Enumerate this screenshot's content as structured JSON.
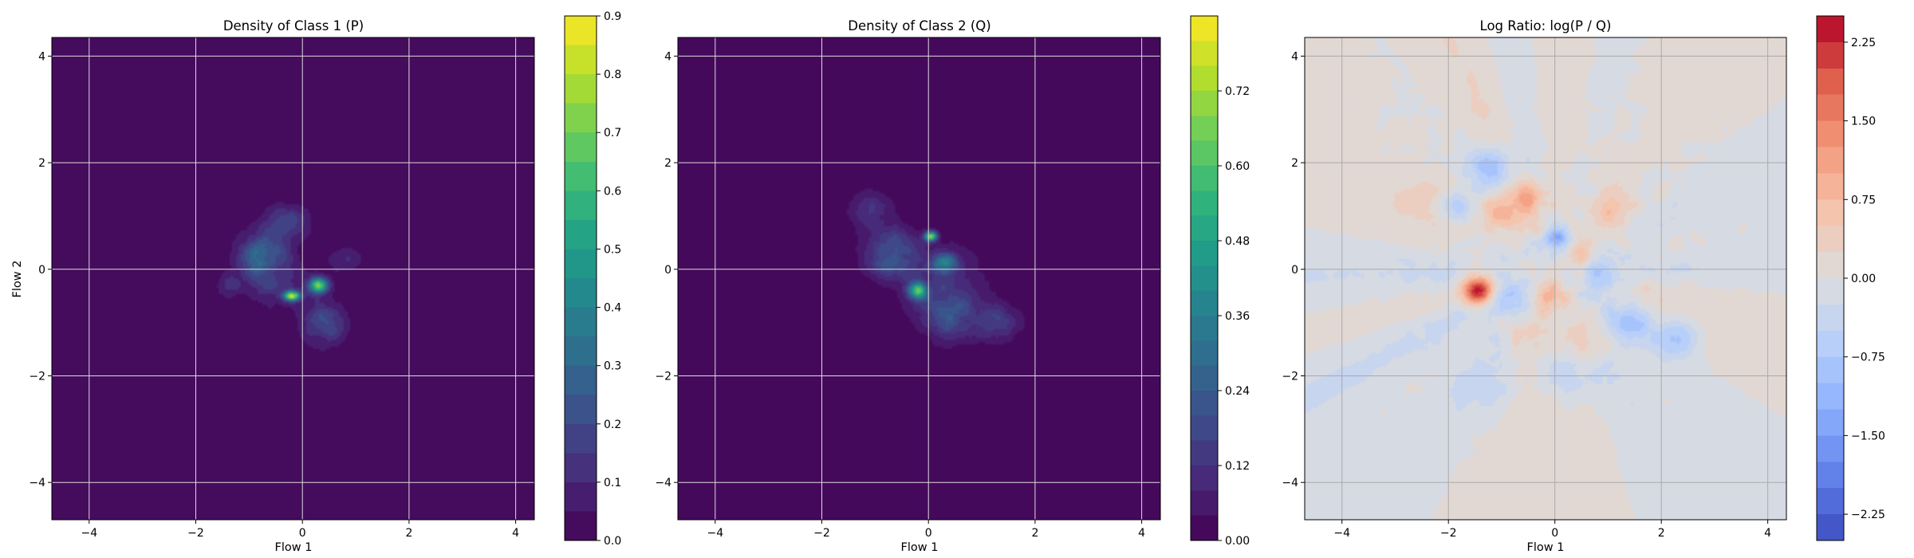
{
  "chart_data": [
    {
      "type": "heatmap",
      "title": "Density of Class 1 (P)",
      "xlabel": "Flow 1",
      "ylabel": "Flow 2",
      "xlim": [
        -4.7,
        4.35
      ],
      "ylim": [
        -4.7,
        4.35
      ],
      "xticks": [
        -4,
        -2,
        0,
        2,
        4
      ],
      "yticks": [
        -4,
        -2,
        0,
        2,
        4
      ],
      "grid": true,
      "colormap": "viridis",
      "background_color": "#440154",
      "colorbar": {
        "range": [
          0,
          0.9
        ],
        "ticks": [
          0.0,
          0.1,
          0.2,
          0.3,
          0.4,
          0.5,
          0.6,
          0.7,
          0.8,
          0.9
        ],
        "levels": 18
      },
      "density_blobs": [
        {
          "cx": -0.2,
          "cy": -0.5,
          "sx": 0.1,
          "sy": 0.06,
          "peak": 0.85
        },
        {
          "cx": 0.3,
          "cy": -0.3,
          "sx": 0.12,
          "sy": 0.1,
          "peak": 0.5
        },
        {
          "cx": -0.8,
          "cy": 0.3,
          "sx": 0.3,
          "sy": 0.3,
          "peak": 0.25
        },
        {
          "cx": 0.4,
          "cy": -1.0,
          "sx": 0.3,
          "sy": 0.3,
          "peak": 0.2
        },
        {
          "cx": -0.3,
          "cy": 0.9,
          "sx": 0.3,
          "sy": 0.25,
          "peak": 0.16
        },
        {
          "cx": -0.5,
          "cy": -0.2,
          "sx": 0.45,
          "sy": 0.4,
          "peak": 0.12
        },
        {
          "cx": -1.4,
          "cy": -0.3,
          "sx": 0.15,
          "sy": 0.15,
          "peak": 0.1
        },
        {
          "cx": 0.8,
          "cy": 0.2,
          "sx": 0.25,
          "sy": 0.2,
          "peak": 0.1
        }
      ]
    },
    {
      "type": "heatmap",
      "title": "Density of Class 2 (Q)",
      "xlabel": "Flow 1",
      "ylabel": "",
      "xlim": [
        -4.7,
        4.35
      ],
      "ylim": [
        -4.7,
        4.35
      ],
      "xticks": [
        -4,
        -2,
        0,
        2,
        4
      ],
      "yticks": [
        -4,
        -2,
        0,
        2,
        4
      ],
      "grid": true,
      "colormap": "viridis",
      "background_color": "#440154",
      "colorbar": {
        "range": [
          0,
          0.84
        ],
        "ticks": [
          0.0,
          0.12,
          0.24,
          0.36,
          0.48,
          0.6,
          0.72
        ],
        "levels": 21
      },
      "density_blobs": [
        {
          "cx": 0.05,
          "cy": 0.62,
          "sx": 0.08,
          "sy": 0.06,
          "peak": 0.6
        },
        {
          "cx": -0.2,
          "cy": -0.4,
          "sx": 0.12,
          "sy": 0.1,
          "peak": 0.45
        },
        {
          "cx": 0.3,
          "cy": 0.1,
          "sx": 0.15,
          "sy": 0.12,
          "peak": 0.35
        },
        {
          "cx": -0.7,
          "cy": 0.3,
          "sx": 0.35,
          "sy": 0.3,
          "peak": 0.22
        },
        {
          "cx": 0.4,
          "cy": -0.9,
          "sx": 0.35,
          "sy": 0.3,
          "peak": 0.2
        },
        {
          "cx": 1.3,
          "cy": -1.0,
          "sx": 0.3,
          "sy": 0.25,
          "peak": 0.14
        },
        {
          "cx": -1.1,
          "cy": 1.1,
          "sx": 0.3,
          "sy": 0.25,
          "peak": 0.12
        },
        {
          "cx": 0.2,
          "cy": -0.2,
          "sx": 0.6,
          "sy": 0.5,
          "peak": 0.1
        }
      ]
    },
    {
      "type": "heatmap",
      "title": "Log Ratio: log(P / Q)",
      "xlabel": "Flow 1",
      "ylabel": "",
      "xlim": [
        -4.7,
        4.35
      ],
      "ylim": [
        -4.7,
        4.35
      ],
      "xticks": [
        -4,
        -2,
        0,
        2,
        4
      ],
      "yticks": [
        -4,
        -2,
        0,
        2,
        4
      ],
      "grid": true,
      "colormap": "coolwarm",
      "colorbar": {
        "range": [
          -2.5,
          2.5
        ],
        "ticks": [
          -2.25,
          -1.5,
          -0.75,
          0.0,
          0.75,
          1.5,
          2.25
        ],
        "levels": 20
      },
      "ratio_blobs": [
        {
          "cx": -1.45,
          "cy": -0.4,
          "sx": 0.2,
          "sy": 0.18,
          "value": 2.3
        },
        {
          "cx": -1.0,
          "cy": 1.1,
          "sx": 0.25,
          "sy": 0.25,
          "value": 0.9
        },
        {
          "cx": -0.5,
          "cy": 1.4,
          "sx": 0.2,
          "sy": 0.2,
          "value": 1.0
        },
        {
          "cx": -0.1,
          "cy": -0.5,
          "sx": 0.2,
          "sy": 0.2,
          "value": 0.9
        },
        {
          "cx": 0.5,
          "cy": 0.3,
          "sx": 0.2,
          "sy": 0.2,
          "value": 0.8
        },
        {
          "cx": 1.1,
          "cy": 1.1,
          "sx": 0.3,
          "sy": 0.3,
          "value": 0.6
        },
        {
          "cx": -0.5,
          "cy": -1.1,
          "sx": 0.3,
          "sy": 0.25,
          "value": 0.5
        },
        {
          "cx": -2.4,
          "cy": 1.3,
          "sx": 0.5,
          "sy": 0.3,
          "value": 0.45
        },
        {
          "cx": 0.6,
          "cy": -1.3,
          "sx": 0.3,
          "sy": 0.3,
          "value": 0.5
        },
        {
          "cx": 0.05,
          "cy": 0.6,
          "sx": 0.15,
          "sy": 0.15,
          "value": -1.4
        },
        {
          "cx": -1.2,
          "cy": 1.9,
          "sx": 0.3,
          "sy": 0.3,
          "value": -1.0
        },
        {
          "cx": -1.9,
          "cy": 1.2,
          "sx": 0.25,
          "sy": 0.2,
          "value": -0.9
        },
        {
          "cx": 1.4,
          "cy": -1.0,
          "sx": 0.3,
          "sy": 0.25,
          "value": -1.0
        },
        {
          "cx": 2.3,
          "cy": -1.3,
          "sx": 0.3,
          "sy": 0.25,
          "value": -0.9
        },
        {
          "cx": -0.8,
          "cy": -0.5,
          "sx": 0.3,
          "sy": 0.3,
          "value": -0.8
        },
        {
          "cx": 0.8,
          "cy": -0.1,
          "sx": 0.25,
          "sy": 0.25,
          "value": -0.7
        },
        {
          "cx": 0.2,
          "cy": -2.0,
          "sx": 0.4,
          "sy": 0.3,
          "value": -0.5
        },
        {
          "cx": -1.3,
          "cy": -2.2,
          "sx": 0.4,
          "sy": 0.4,
          "value": -0.3
        }
      ]
    }
  ]
}
